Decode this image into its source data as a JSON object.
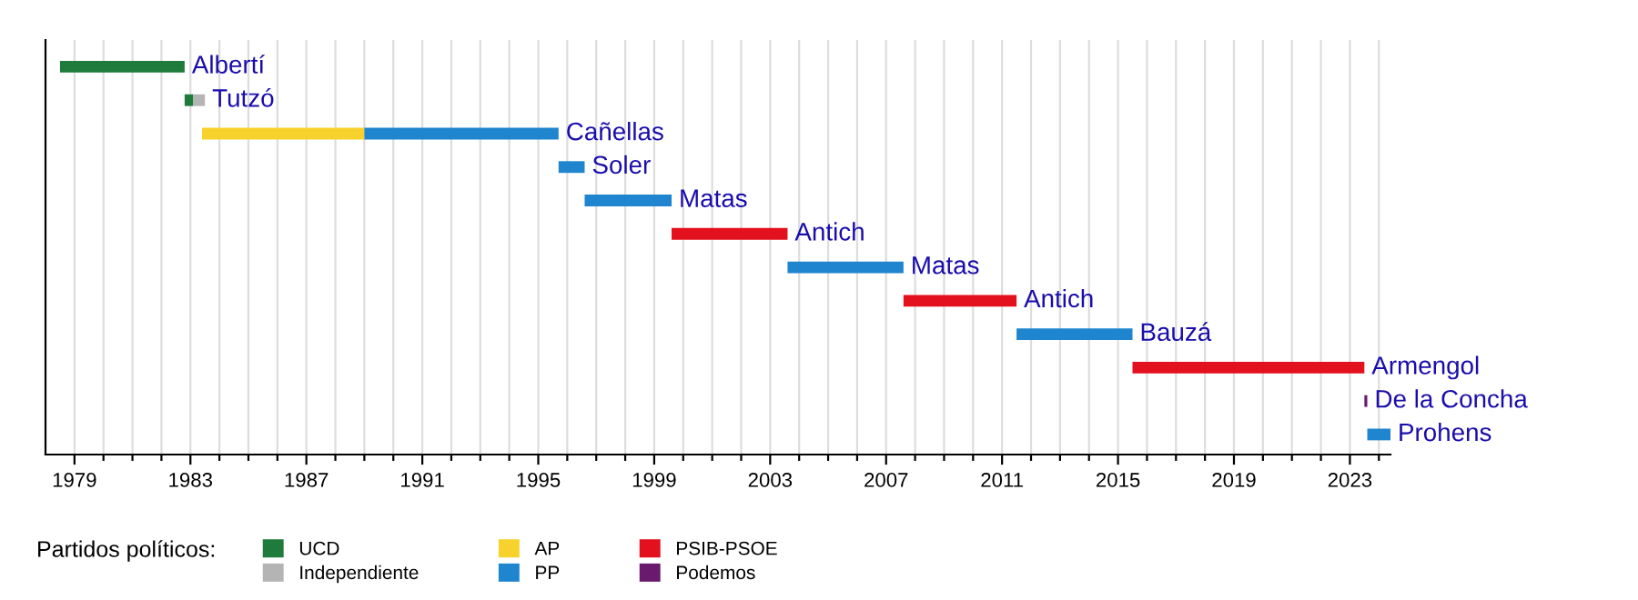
{
  "chart_data": {
    "type": "bar",
    "orientation": "horizontal",
    "categories": [
      "Albertí",
      "Tutzó",
      "Cañellas",
      "Soler",
      "Matas",
      "Antich",
      "Matas",
      "Antich",
      "Bauzá",
      "Armengol",
      "De la Concha",
      "Prohens"
    ],
    "series": [
      {
        "name": "UCD",
        "color": "#1e7b3c",
        "base": [
          1978.5,
          1982.8,
          null,
          null,
          null,
          null,
          null,
          null,
          null,
          null,
          null,
          null
        ],
        "values": [
          4.3,
          0.3,
          null,
          null,
          null,
          null,
          null,
          null,
          null,
          null,
          null,
          null
        ]
      },
      {
        "name": "Independiente",
        "color": "#b4b4b4",
        "base": [
          null,
          1983.1,
          null,
          null,
          null,
          null,
          null,
          null,
          null,
          null,
          null,
          null
        ],
        "values": [
          null,
          0.4,
          null,
          null,
          null,
          null,
          null,
          null,
          null,
          null,
          null,
          null
        ]
      },
      {
        "name": "AP",
        "color": "#f8d22c",
        "base": [
          null,
          null,
          1983.4,
          null,
          null,
          null,
          null,
          null,
          null,
          null,
          null,
          null
        ],
        "values": [
          null,
          null,
          5.6,
          null,
          null,
          null,
          null,
          null,
          null,
          null,
          null,
          null
        ]
      },
      {
        "name": "PP",
        "color": "#1f85cf",
        "base": [
          null,
          null,
          1989.0,
          1995.7,
          1996.6,
          null,
          2003.6,
          null,
          2011.5,
          null,
          null,
          2023.6
        ],
        "values": [
          null,
          null,
          6.7,
          0.9,
          3.0,
          null,
          4.0,
          null,
          4.0,
          null,
          null,
          0.8
        ]
      },
      {
        "name": "PSIB-PSOE",
        "color": "#e3101e",
        "base": [
          null,
          null,
          null,
          null,
          null,
          1999.6,
          null,
          2007.6,
          null,
          2015.5,
          null,
          null
        ],
        "values": [
          null,
          null,
          null,
          null,
          null,
          4.0,
          null,
          3.9,
          null,
          8.0,
          null,
          null
        ]
      },
      {
        "name": "Podemos",
        "color": "#691a6e",
        "base": [
          null,
          null,
          null,
          null,
          null,
          null,
          null,
          null,
          null,
          null,
          2023.5,
          null
        ],
        "values": [
          null,
          null,
          null,
          null,
          null,
          null,
          null,
          null,
          null,
          null,
          0.1,
          null
        ]
      }
    ],
    "xlim": [
      1978,
      2024.4
    ],
    "xticks": [
      {
        "value": 1979,
        "label": "1979"
      },
      {
        "value": 1980,
        "label": null
      },
      {
        "value": 1981,
        "label": null
      },
      {
        "value": 1982,
        "label": null
      },
      {
        "value": 1983,
        "label": "1983"
      },
      {
        "value": 1984,
        "label": null
      },
      {
        "value": 1985,
        "label": null
      },
      {
        "value": 1986,
        "label": null
      },
      {
        "value": 1987,
        "label": "1987"
      },
      {
        "value": 1988,
        "label": null
      },
      {
        "value": 1989,
        "label": null
      },
      {
        "value": 1990,
        "label": null
      },
      {
        "value": 1991,
        "label": "1991"
      },
      {
        "value": 1992,
        "label": null
      },
      {
        "value": 1993,
        "label": null
      },
      {
        "value": 1994,
        "label": null
      },
      {
        "value": 1995,
        "label": "1995"
      },
      {
        "value": 1996,
        "label": null
      },
      {
        "value": 1997,
        "label": null
      },
      {
        "value": 1998,
        "label": null
      },
      {
        "value": 1999,
        "label": "1999"
      },
      {
        "value": 2000,
        "label": null
      },
      {
        "value": 2001,
        "label": null
      },
      {
        "value": 2002,
        "label": null
      },
      {
        "value": 2003,
        "label": "2003"
      },
      {
        "value": 2004,
        "label": null
      },
      {
        "value": 2005,
        "label": null
      },
      {
        "value": 2006,
        "label": null
      },
      {
        "value": 2007,
        "label": "2007"
      },
      {
        "value": 2008,
        "label": null
      },
      {
        "value": 2009,
        "label": null
      },
      {
        "value": 2010,
        "label": null
      },
      {
        "value": 2011,
        "label": "2011"
      },
      {
        "value": 2012,
        "label": null
      },
      {
        "value": 2013,
        "label": null
      },
      {
        "value": 2014,
        "label": null
      },
      {
        "value": 2015,
        "label": "2015"
      },
      {
        "value": 2016,
        "label": null
      },
      {
        "value": 2017,
        "label": null
      },
      {
        "value": 2018,
        "label": null
      },
      {
        "value": 2019,
        "label": "2019"
      },
      {
        "value": 2020,
        "label": null
      },
      {
        "value": 2021,
        "label": null
      },
      {
        "value": 2022,
        "label": null
      },
      {
        "value": 2023,
        "label": "2023"
      },
      {
        "value": 2024,
        "label": null
      }
    ],
    "grid": "x",
    "legend": "bottom",
    "legend_title": "Partidos políticos:"
  }
}
